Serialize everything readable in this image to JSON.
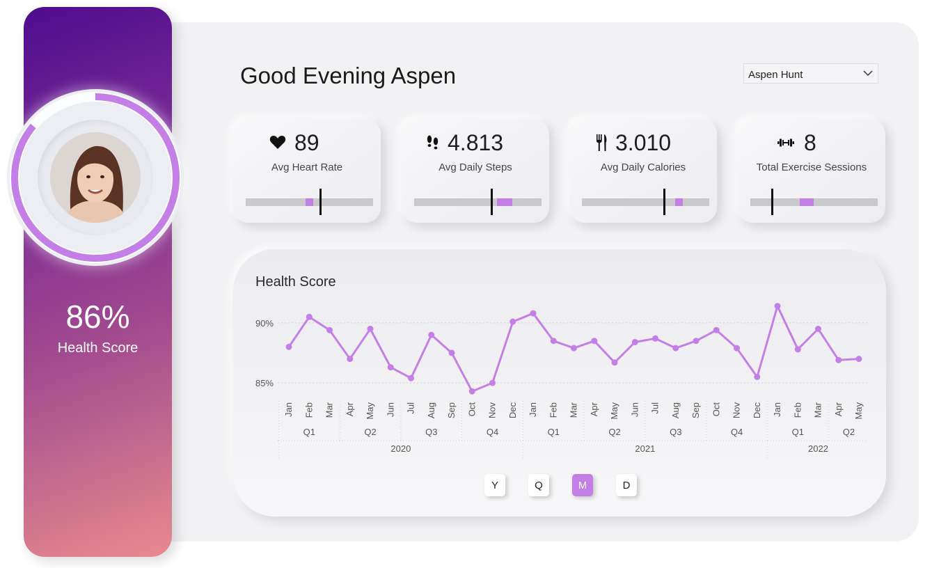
{
  "profile": {
    "score_value": "86%",
    "score_label": "Health Score",
    "score_fraction": 0.86
  },
  "header": {
    "greeting": "Good Evening Aspen",
    "user_select": "Aspen Hunt"
  },
  "kpis": [
    {
      "icon": "heart-icon",
      "value": "89",
      "label": "Avg Heart Rate",
      "fill_start": 0.47,
      "fill_end": 0.53,
      "target": 0.59
    },
    {
      "icon": "footprints-icon",
      "value": "4.813",
      "label": "Avg Daily Steps",
      "fill_start": 0.65,
      "fill_end": 0.77,
      "target": 0.61
    },
    {
      "icon": "fork-knife-icon",
      "value": "3.010",
      "label": "Avg Daily Calories",
      "fill_start": 0.73,
      "fill_end": 0.79,
      "target": 0.65
    },
    {
      "icon": "dumbbell-icon",
      "value": "8",
      "label": "Total Exercise Sessions",
      "fill_start": 0.39,
      "fill_end": 0.5,
      "target": 0.17
    }
  ],
  "colors": {
    "accent": "#c47fe6",
    "line": "#c47fe6"
  },
  "granularity_buttons": [
    {
      "label": "Y",
      "active": false
    },
    {
      "label": "Q",
      "active": false
    },
    {
      "label": "M",
      "active": true
    },
    {
      "label": "D",
      "active": false
    }
  ],
  "chart_data": {
    "type": "line",
    "title": "Health Score",
    "y_ticks": [
      "90%",
      "85%"
    ],
    "ylim": [
      83.5,
      91.5
    ],
    "grid": true,
    "x_months": [
      "Jan",
      "Feb",
      "Mar",
      "Apr",
      "May",
      "Jun",
      "Jul",
      "Aug",
      "Sep",
      "Oct",
      "Nov",
      "Dec",
      "Jan",
      "Feb",
      "Mar",
      "Apr",
      "May",
      "Jun",
      "Jul",
      "Aug",
      "Sep",
      "Oct",
      "Nov",
      "Dec",
      "Jan",
      "Feb",
      "Mar",
      "Apr",
      "May"
    ],
    "x_quarters": [
      {
        "label": "Q1",
        "months": 3
      },
      {
        "label": "Q2",
        "months": 3
      },
      {
        "label": "Q3",
        "months": 3
      },
      {
        "label": "Q4",
        "months": 3
      },
      {
        "label": "Q1",
        "months": 3
      },
      {
        "label": "Q2",
        "months": 3
      },
      {
        "label": "Q3",
        "months": 3
      },
      {
        "label": "Q4",
        "months": 3
      },
      {
        "label": "Q1",
        "months": 3
      },
      {
        "label": "Q2",
        "months": 2
      }
    ],
    "x_years": [
      {
        "label": "2020",
        "months": 12
      },
      {
        "label": "2021",
        "months": 12
      },
      {
        "label": "2022",
        "months": 5
      }
    ],
    "series": [
      {
        "values": [
          88.0,
          90.5,
          89.4,
          87.0,
          89.5,
          86.3,
          85.4,
          89.0,
          87.5,
          84.3,
          85.0,
          90.1,
          90.8,
          88.5,
          87.9,
          88.5,
          86.7,
          88.4,
          88.7,
          87.9,
          88.5,
          89.4,
          87.9,
          85.5,
          91.4,
          87.8,
          89.5,
          86.9,
          87.0
        ]
      }
    ]
  }
}
